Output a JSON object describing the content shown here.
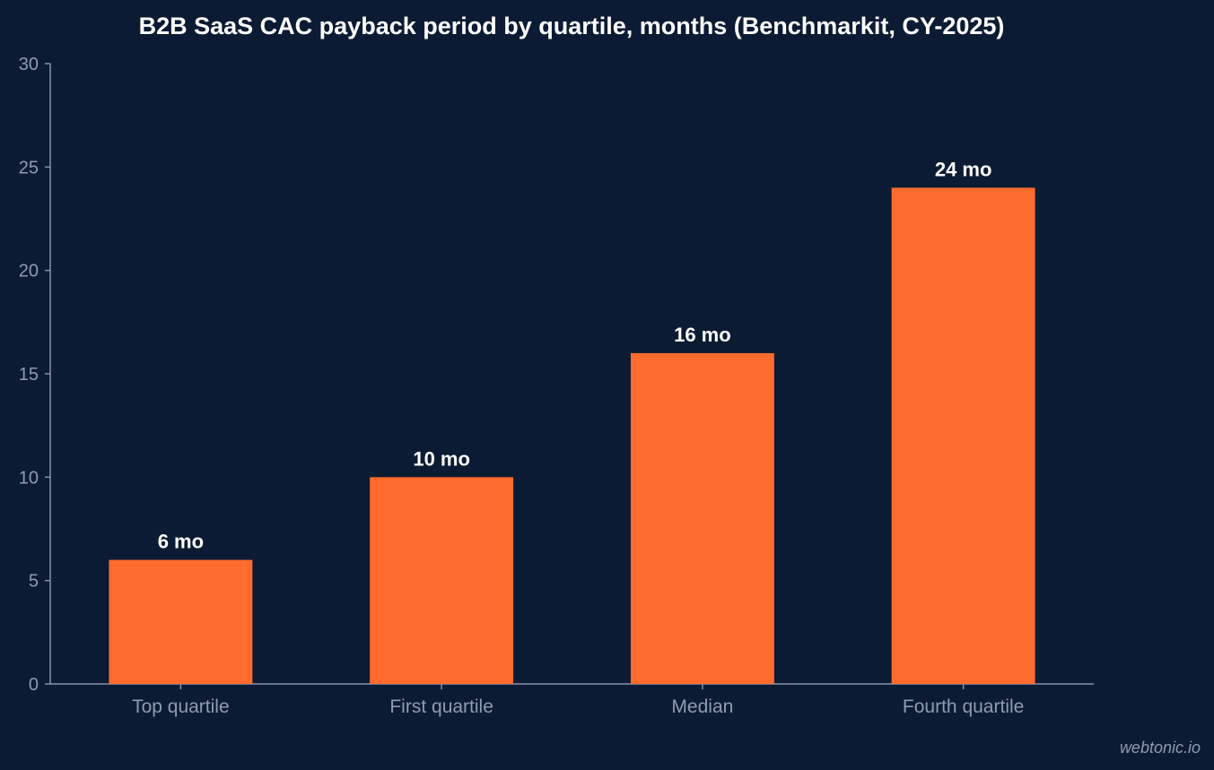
{
  "chart_data": {
    "type": "bar",
    "title": "B2B SaaS CAC payback period by quartile, months (Benchmarkit, CY-2025)",
    "xlabel": "",
    "ylabel": "",
    "categories": [
      "Top quartile",
      "First quartile",
      "Median",
      "Fourth quartile"
    ],
    "values": [
      6,
      10,
      16,
      24
    ],
    "data_labels": [
      "6 mo",
      "10 mo",
      "16 mo",
      "24 mo"
    ],
    "ylim": [
      0,
      30
    ],
    "yticks": [
      0,
      5,
      10,
      15,
      20,
      25,
      30
    ],
    "grid": false,
    "legend": "none"
  },
  "watermark": "webtonic.io",
  "colors": {
    "background": "#0b1b33",
    "bar": "#ff6b2c",
    "axis": "#8793a8",
    "tick_text": "#8f9bb0",
    "title_text": "#ffffff",
    "data_label_text": "#ffffff",
    "watermark_text": "#8f9bb0"
  }
}
